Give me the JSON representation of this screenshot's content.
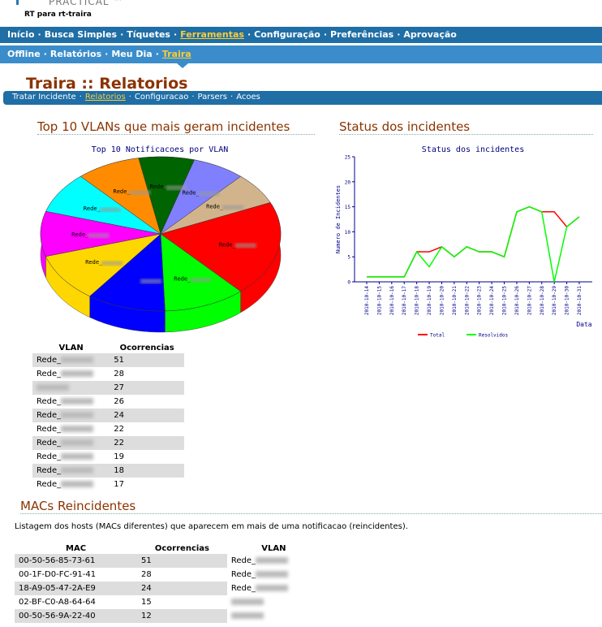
{
  "header": {
    "logo": "PRACTICAL ™",
    "subtitle": "RT para rt-traira"
  },
  "nav": {
    "items": [
      "Início",
      "Busca Simples",
      "Tíquetes",
      "Ferramentas",
      "Configuração",
      "Preferências",
      "Aprovação"
    ],
    "active": 3
  },
  "subnav": {
    "items": [
      "Offline",
      "Relatórios",
      "Meu Dia",
      "Traira"
    ],
    "active": 3
  },
  "page_title": "Traira :: Relatorios",
  "tabs": {
    "items": [
      "Tratar Incidente",
      "Relatorios",
      "Configuracao",
      "Parsers",
      "Acoes"
    ],
    "active": 1
  },
  "sections": [
    {
      "title": "Top 10 VLANs que mais geram incidentes"
    },
    {
      "title": "Status dos incidentes"
    },
    {
      "title": "MACs Reincidentes",
      "description": "Listagem dos hosts (MACs diferentes) que aparecem em mais de uma notificacao (reincidentes)."
    }
  ],
  "vlan_table": {
    "headers": [
      "VLAN",
      "Ocorrencias"
    ]
  },
  "mac_table": {
    "headers": [
      "MAC",
      "Ocorrencias",
      "VLAN"
    ],
    "rows": [
      [
        "00-50-56-85-73-61",
        51,
        "Rede_"
      ],
      [
        "00-1F-D0-FC-91-41",
        28,
        "Rede_"
      ],
      [
        "18-A9-05-47-2A-E9",
        24,
        "Rede_"
      ],
      [
        "02-BF-C0-A8-64-64",
        15,
        null
      ],
      [
        "00-50-56-9A-22-40",
        12,
        null
      ]
    ]
  },
  "chart_data": [
    {
      "type": "pie",
      "title": "Top 10 Notificacoes por VLAN",
      "categories": [
        "Rede_",
        "Rede_",
        null,
        "Rede_",
        "Rede_",
        "Rede_",
        "Rede_",
        "Rede_",
        "Rede_",
        "Rede_"
      ],
      "values": [
        51,
        28,
        27,
        26,
        24,
        22,
        22,
        19,
        18,
        17
      ],
      "colors": [
        "#ff0000",
        "#00ff00",
        "#0000ff",
        "#ffd700",
        "#ff00ff",
        "#00ffff",
        "#ff8c00",
        "#006400",
        "#8080ff",
        "#d2b48c"
      ]
    },
    {
      "type": "line",
      "title": "Status dos incidentes",
      "x_label": "Data",
      "y_label": "Numero de Incidentes",
      "x": [
        "2010-10-14",
        "2010-10-15",
        "2010-10-16",
        "2010-10-17",
        "2010-10-18",
        "2010-10-19",
        "2010-10-20",
        "2010-10-21",
        "2010-10-22",
        "2010-10-23",
        "2010-10-24",
        "2010-10-25",
        "2010-10-26",
        "2010-10-27",
        "2010-10-28",
        "2010-10-29",
        "2010-10-30",
        "2010-10-31"
      ],
      "series": [
        {
          "name": "Total",
          "color": "#ff0000",
          "values": [
            1,
            1,
            1,
            1,
            6,
            6,
            7,
            5,
            7,
            6,
            6,
            5,
            14,
            15,
            14,
            14,
            11,
            13
          ]
        },
        {
          "name": "Resolvidos",
          "color": "#00ff00",
          "values": [
            1,
            1,
            1,
            1,
            6,
            3,
            7,
            5,
            7,
            6,
            6,
            5,
            14,
            15,
            14,
            0,
            11,
            13
          ]
        }
      ],
      "ylim": [
        0,
        25
      ],
      "yticks": [
        0,
        5,
        10,
        15,
        20,
        25
      ]
    }
  ]
}
